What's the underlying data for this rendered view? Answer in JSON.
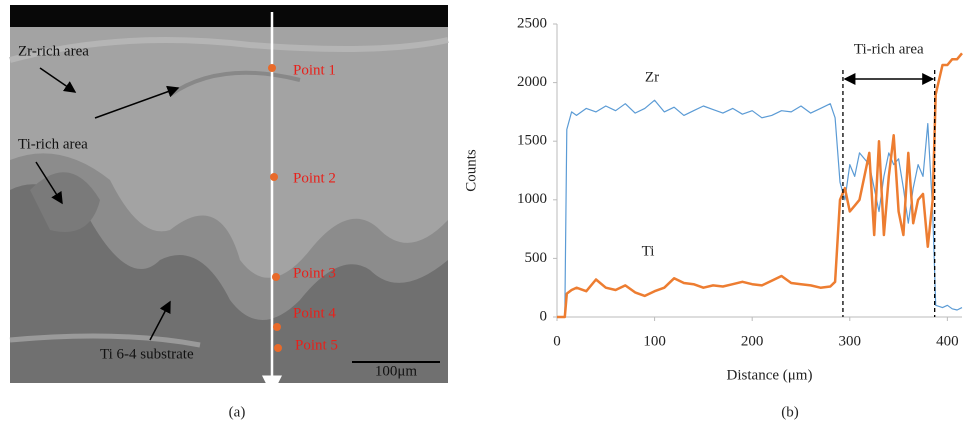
{
  "image_panel": {
    "labels": [
      "Zr-rich area",
      "Ti-rich area",
      "Ti 6-4 substrate"
    ],
    "points": [
      "Point 1",
      "Point 2",
      "Point 3",
      "Point 4",
      "Point 5"
    ],
    "scale_bar": "100μm",
    "caption": "(a)"
  },
  "chart_data": {
    "type": "line",
    "caption": "(b)",
    "x_label": "Distance (μm)",
    "y_label": "Counts",
    "annotations": [
      "Zr",
      "Ti",
      "Ti-rich area"
    ],
    "boundaries": [
      293,
      387
    ],
    "x": [
      0,
      8,
      10,
      15,
      20,
      30,
      40,
      50,
      60,
      70,
      80,
      90,
      100,
      110,
      120,
      130,
      140,
      150,
      160,
      170,
      180,
      190,
      200,
      210,
      220,
      230,
      240,
      250,
      260,
      270,
      280,
      285,
      290,
      295,
      300,
      305,
      310,
      315,
      320,
      325,
      330,
      335,
      340,
      345,
      350,
      355,
      360,
      365,
      370,
      375,
      380,
      385,
      388,
      395,
      400,
      405,
      410,
      415
    ],
    "series": [
      {
        "name": "Zr",
        "color": "#5b9bd5",
        "values": [
          0,
          0,
          1600,
          1750,
          1720,
          1780,
          1750,
          1800,
          1760,
          1820,
          1740,
          1780,
          1850,
          1750,
          1790,
          1720,
          1760,
          1800,
          1770,
          1740,
          1780,
          1730,
          1760,
          1700,
          1720,
          1760,
          1750,
          1800,
          1740,
          1780,
          1820,
          1700,
          1150,
          1000,
          1300,
          1200,
          1400,
          1350,
          1300,
          1100,
          900,
          1200,
          1400,
          1300,
          1350,
          1100,
          800,
          1100,
          1300,
          1200,
          1650,
          900,
          100,
          80,
          100,
          70,
          60,
          80
        ]
      },
      {
        "name": "Ti",
        "color": "#ed7d31",
        "values": [
          0,
          0,
          200,
          230,
          250,
          220,
          320,
          250,
          230,
          270,
          210,
          180,
          220,
          250,
          330,
          290,
          280,
          250,
          270,
          260,
          280,
          300,
          280,
          270,
          310,
          350,
          290,
          280,
          270,
          250,
          260,
          300,
          1000,
          1100,
          900,
          950,
          1000,
          1200,
          1400,
          700,
          1500,
          700,
          1200,
          1550,
          900,
          700,
          1400,
          800,
          1000,
          1050,
          600,
          1000,
          1900,
          2150,
          2150,
          2200,
          2200,
          2250
        ]
      }
    ],
    "xlim": [
      0,
      415
    ],
    "xticks": [
      0,
      100,
      200,
      300,
      400
    ],
    "ylim": [
      0,
      2500
    ],
    "yticks": [
      0,
      500,
      1000,
      1500,
      2000,
      2500
    ],
    "grid": false
  }
}
